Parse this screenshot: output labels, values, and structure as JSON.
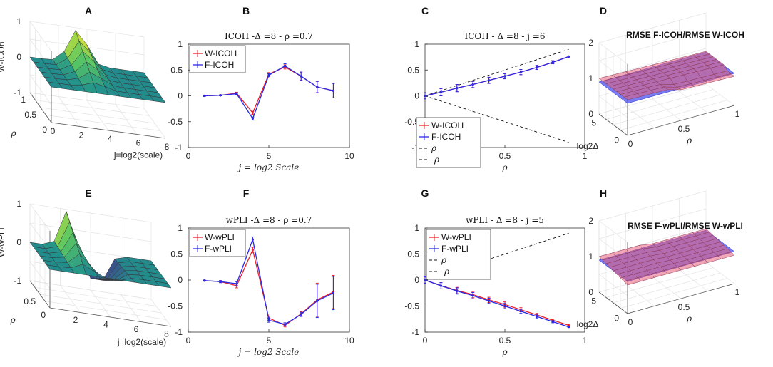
{
  "panel_letters": [
    "A",
    "B",
    "C",
    "D",
    "E",
    "F",
    "G",
    "H"
  ],
  "colors": {
    "red": "#e8222b",
    "blue": "#2929e6",
    "grid": "#e4e4e4",
    "axis": "#333333"
  },
  "chart_data": [
    {
      "id": "A",
      "type": "surface3d",
      "title": "",
      "zlabel": "W-ICOh",
      "xlabel": "j=log2(scale)",
      "ylabel": "ρ",
      "zticks": [
        "1",
        "0",
        "-1"
      ],
      "xticks": [
        "0",
        "2",
        "4",
        "6",
        "8"
      ],
      "yticks": [
        "1",
        "0.5",
        "0"
      ],
      "zlim": [
        -1,
        1
      ]
    },
    {
      "id": "B",
      "type": "line",
      "title": "ICOH -Δ =8 - ρ =0.7",
      "xlabel": "j = log2 Scale",
      "xlim": [
        0,
        10
      ],
      "ylim": [
        -1,
        1
      ],
      "xticks": [
        "0",
        "5",
        "10"
      ],
      "yticks": [
        "1",
        "0.5",
        "0",
        "-0.5",
        "-1"
      ],
      "x": [
        1,
        2,
        3,
        4,
        5,
        6,
        7,
        8,
        9
      ],
      "series": [
        {
          "name": "W-ICOH",
          "color": "red",
          "values": [
            0.0,
            0.01,
            0.05,
            -0.33,
            0.42,
            0.56,
            0.38,
            0.17,
            0.1
          ],
          "err": [
            0.01,
            0.01,
            0.02,
            0.03,
            0.03,
            0.04,
            0.08,
            0.11,
            0.14
          ]
        },
        {
          "name": "F-ICOH",
          "color": "blue",
          "values": [
            0.0,
            0.01,
            0.04,
            -0.44,
            0.4,
            0.58,
            0.38,
            0.17,
            0.1
          ],
          "err": [
            0.01,
            0.01,
            0.02,
            0.03,
            0.03,
            0.04,
            0.08,
            0.11,
            0.14
          ]
        }
      ],
      "legend_position": "top-left"
    },
    {
      "id": "C",
      "type": "line",
      "title": "ICOH - Δ =8 - j =6",
      "xlabel": "ρ",
      "xlim": [
        0,
        1
      ],
      "ylim": [
        -1,
        1
      ],
      "xticks": [
        "0",
        "0.5",
        "1"
      ],
      "yticks": [
        "1",
        "0.5",
        "0",
        "-0.5",
        "-1"
      ],
      "x": [
        0,
        0.1,
        0.2,
        0.3,
        0.4,
        0.5,
        0.6,
        0.7,
        0.8,
        0.9
      ],
      "series": [
        {
          "name": "W-ICOH",
          "color": "red",
          "values": [
            0.0,
            0.07,
            0.15,
            0.22,
            0.3,
            0.38,
            0.46,
            0.55,
            0.65,
            0.76
          ],
          "err": [
            0.06,
            0.07,
            0.07,
            0.06,
            0.06,
            0.05,
            0.05,
            0.04,
            0.03,
            0.01
          ]
        },
        {
          "name": "F-ICOH",
          "color": "blue",
          "values": [
            0.0,
            0.07,
            0.15,
            0.22,
            0.3,
            0.38,
            0.46,
            0.55,
            0.65,
            0.76
          ],
          "err": [
            0.06,
            0.07,
            0.07,
            0.06,
            0.06,
            0.05,
            0.05,
            0.04,
            0.03,
            0.01
          ]
        }
      ],
      "ref_lines": [
        {
          "name": "ρ",
          "slope": 1
        },
        {
          "name": "-ρ",
          "slope": -1
        }
      ],
      "legend_position": "bottom-left"
    },
    {
      "id": "D",
      "type": "surface3d",
      "title": "RMSE F-ICOH/RMSE W-ICOH",
      "xlabel": "ρ",
      "ylabel": "log2Δ",
      "zticks": [
        "2",
        "1",
        "0"
      ],
      "xticks": [
        "0",
        "0.5",
        "1"
      ],
      "yticks": [
        "5",
        "0"
      ],
      "zlim": [
        0,
        2
      ]
    },
    {
      "id": "E",
      "type": "surface3d",
      "title": "",
      "zlabel": "W-wPLI",
      "xlabel": "j=log2(scale)",
      "ylabel": "ρ",
      "zticks": [
        "1",
        "0",
        "-1"
      ],
      "xticks": [
        "2",
        "4",
        "6",
        "8"
      ],
      "yticks": [
        "0.5",
        "0"
      ],
      "zlim": [
        -1,
        1
      ]
    },
    {
      "id": "F",
      "type": "line",
      "title": "wPLI -Δ =8 - ρ =0.7",
      "xlabel": "j = log2 Scale",
      "xlim": [
        0,
        10
      ],
      "ylim": [
        -1,
        1
      ],
      "xticks": [
        "0",
        "5",
        "10"
      ],
      "yticks": [
        "1",
        "0.5",
        "0",
        "-0.5",
        "-1"
      ],
      "x": [
        1,
        2,
        3,
        4,
        5,
        6,
        7,
        8,
        9
      ],
      "series": [
        {
          "name": "W-wPLI",
          "color": "red",
          "values": [
            -0.01,
            -0.03,
            -0.11,
            0.58,
            -0.73,
            -0.87,
            -0.65,
            -0.38,
            -0.23
          ],
          "err": [
            0.01,
            0.02,
            0.04,
            0.05,
            0.04,
            0.03,
            0.04,
            0.32,
            0.32
          ]
        },
        {
          "name": "F-wPLI",
          "color": "blue",
          "values": [
            -0.01,
            -0.03,
            -0.07,
            0.78,
            -0.77,
            -0.85,
            -0.66,
            -0.4,
            -0.25
          ],
          "err": [
            0.01,
            0.02,
            0.04,
            0.05,
            0.04,
            0.03,
            0.04,
            0.32,
            0.32
          ]
        }
      ],
      "legend_position": "top-left"
    },
    {
      "id": "G",
      "type": "line",
      "title": "wPLI - Δ =8 - j =5",
      "xlabel": "ρ",
      "xlim": [
        0,
        1
      ],
      "ylim": [
        -1,
        1
      ],
      "xticks": [
        "0",
        "0.5",
        "1"
      ],
      "yticks": [
        "1",
        "0.5",
        "0",
        "-0.5",
        "-1"
      ],
      "x": [
        0,
        0.1,
        0.2,
        0.3,
        0.4,
        0.5,
        0.6,
        0.7,
        0.8,
        0.9
      ],
      "series": [
        {
          "name": "W-wPLI",
          "color": "red",
          "values": [
            0.0,
            -0.11,
            -0.2,
            -0.28,
            -0.38,
            -0.47,
            -0.57,
            -0.67,
            -0.77,
            -0.87
          ],
          "err": [
            0.06,
            0.06,
            0.06,
            0.06,
            0.05,
            0.05,
            0.04,
            0.03,
            0.02,
            0.01
          ]
        },
        {
          "name": "F-wPLI",
          "color": "blue",
          "values": [
            0.0,
            -0.11,
            -0.21,
            -0.3,
            -0.4,
            -0.5,
            -0.6,
            -0.7,
            -0.8,
            -0.9
          ],
          "err": [
            0.06,
            0.06,
            0.06,
            0.06,
            0.05,
            0.05,
            0.04,
            0.03,
            0.02,
            0.01
          ]
        }
      ],
      "ref_lines": [
        {
          "name": "ρ",
          "slope": 1
        },
        {
          "name": "-ρ",
          "slope": -1
        }
      ],
      "legend_position": "top-left"
    },
    {
      "id": "H",
      "type": "surface3d",
      "title": "RMSE F-wPLI/RMSE W-wPLI",
      "xlabel": "ρ",
      "ylabel": "log2Δ",
      "zticks": [
        "2",
        "1",
        "0"
      ],
      "xticks": [
        "0",
        "0.5",
        "1"
      ],
      "yticks": [
        "5",
        "0"
      ],
      "zlim": [
        0,
        2
      ]
    }
  ]
}
